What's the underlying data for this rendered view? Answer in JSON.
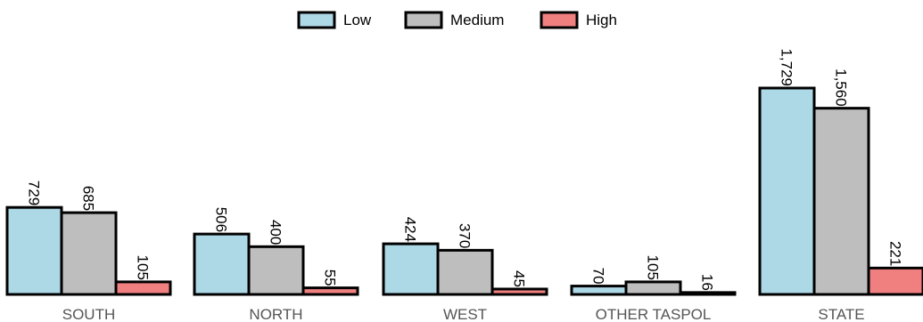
{
  "chart_data": {
    "type": "bar",
    "categories": [
      "SOUTH",
      "NORTH",
      "WEST",
      "OTHER TASPOL",
      "STATE"
    ],
    "series": [
      {
        "name": "Low",
        "values": [
          729,
          506,
          424,
          70,
          1729
        ],
        "labels": [
          "729",
          "506",
          "424",
          "70",
          "1,729"
        ],
        "color": "#add8e6"
      },
      {
        "name": "Medium",
        "values": [
          685,
          400,
          370,
          105,
          1560
        ],
        "labels": [
          "685",
          "400",
          "370",
          "105",
          "1,560"
        ],
        "color": "#bebebe"
      },
      {
        "name": "High",
        "values": [
          105,
          55,
          45,
          16,
          221
        ],
        "labels": [
          "105",
          "55",
          "45",
          "16",
          "221"
        ],
        "color": "#f08080"
      }
    ],
    "legend_position": "top",
    "grid": false,
    "value_labels": "rotated"
  }
}
